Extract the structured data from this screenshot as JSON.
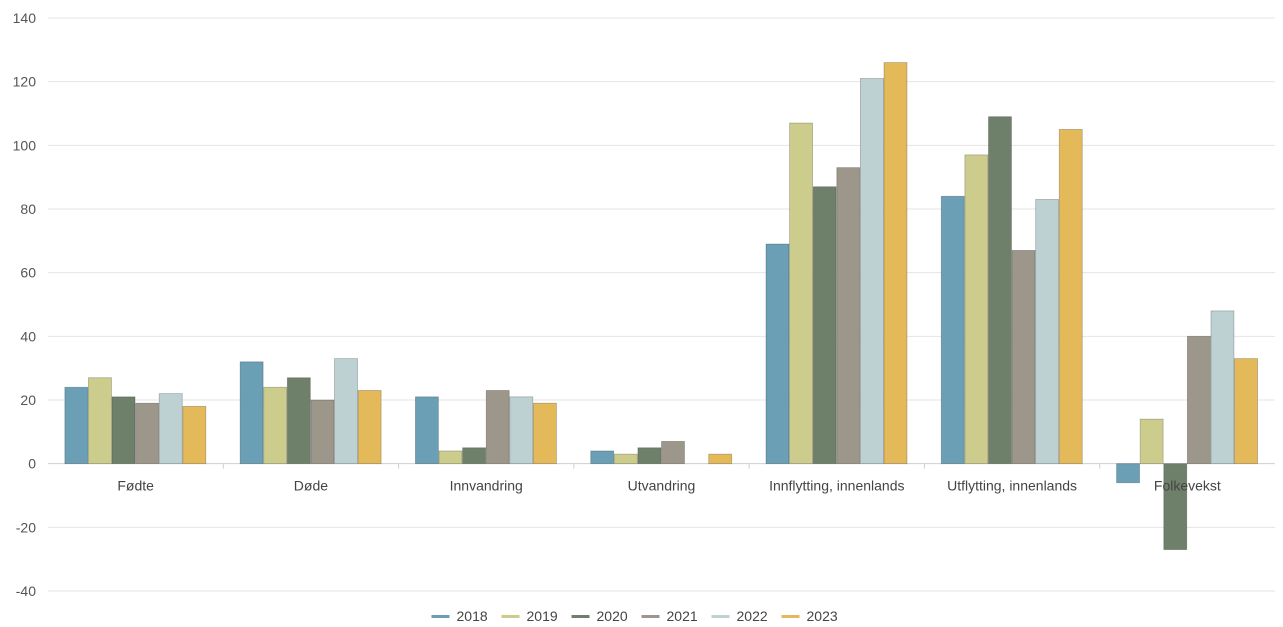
{
  "chart_data": {
    "type": "bar",
    "categories": [
      "Fødte",
      "Døde",
      "Innvandring",
      "Utvandring",
      "Innflytting, innenlands",
      "Utflytting, innenlands",
      "Folkevekst"
    ],
    "series": [
      {
        "name": "2018",
        "color": "#6a9fb5",
        "values": [
          24,
          32,
          21,
          4,
          69,
          84,
          -6
        ]
      },
      {
        "name": "2019",
        "color": "#cccc8c",
        "values": [
          27,
          24,
          4,
          3,
          107,
          97,
          14
        ]
      },
      {
        "name": "2020",
        "color": "#6f806a",
        "values": [
          21,
          27,
          5,
          5,
          87,
          109,
          -27
        ]
      },
      {
        "name": "2021",
        "color": "#9c968b",
        "values": [
          19,
          20,
          23,
          7,
          93,
          67,
          40
        ]
      },
      {
        "name": "2022",
        "color": "#bdd1d3",
        "values": [
          22,
          33,
          21,
          0,
          121,
          83,
          48
        ]
      },
      {
        "name": "2023",
        "color": "#e3b95a",
        "values": [
          18,
          23,
          19,
          3,
          126,
          105,
          33
        ]
      }
    ],
    "ylim": [
      -40,
      140
    ],
    "yticks": [
      -40,
      -20,
      0,
      20,
      40,
      60,
      80,
      100,
      120,
      140
    ],
    "grid": true,
    "legend_position": "bottom"
  }
}
